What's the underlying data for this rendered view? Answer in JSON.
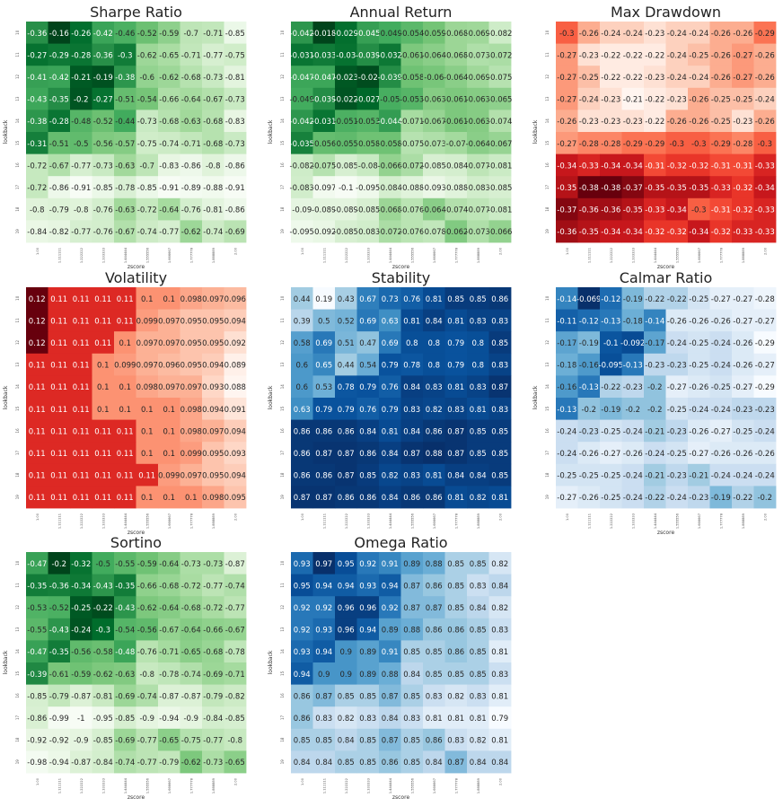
{
  "chart_data": [
    {
      "type": "heatmap",
      "title": "Sharpe Ratio",
      "cmap": "greens",
      "xlabel": "zscore",
      "ylabel": "lookback",
      "x": [
        "1.00",
        "1.111111",
        "1.222222",
        "1.333333",
        "1.444444",
        "1.555556",
        "1.666667",
        "1.777778",
        "1.888889",
        "2.00"
      ],
      "y": [
        "10",
        "11",
        "12",
        "13",
        "14",
        "15",
        "16",
        "17",
        "18",
        "19"
      ],
      "values": [
        [
          -0.36,
          -0.16,
          -0.26,
          -0.42,
          -0.46,
          -0.52,
          -0.59,
          -0.7,
          -0.71,
          -0.85
        ],
        [
          -0.27,
          -0.29,
          -0.28,
          -0.36,
          -0.3,
          -0.62,
          -0.65,
          -0.71,
          -0.77,
          -0.75
        ],
        [
          -0.41,
          -0.42,
          -0.21,
          -0.19,
          -0.38,
          -0.6,
          -0.62,
          -0.68,
          -0.73,
          -0.81
        ],
        [
          -0.43,
          -0.35,
          -0.2,
          -0.27,
          -0.51,
          -0.54,
          -0.66,
          -0.64,
          -0.67,
          -0.73
        ],
        [
          -0.38,
          -0.28,
          -0.48,
          -0.52,
          -0.44,
          -0.73,
          -0.68,
          -0.63,
          -0.68,
          -0.83
        ],
        [
          -0.31,
          -0.51,
          -0.5,
          -0.56,
          -0.57,
          -0.75,
          -0.74,
          -0.71,
          -0.68,
          -0.73
        ],
        [
          -0.72,
          -0.67,
          -0.77,
          -0.73,
          -0.63,
          -0.7,
          -0.83,
          -0.86,
          -0.8,
          -0.86
        ],
        [
          -0.72,
          -0.86,
          -0.91,
          -0.85,
          -0.78,
          -0.85,
          -0.91,
          -0.89,
          -0.88,
          -0.91
        ],
        [
          -0.8,
          -0.79,
          -0.8,
          -0.76,
          -0.63,
          -0.72,
          -0.64,
          -0.76,
          -0.81,
          -0.86
        ],
        [
          -0.84,
          -0.82,
          -0.77,
          -0.76,
          -0.67,
          -0.74,
          -0.77,
          -0.62,
          -0.74,
          -0.69
        ]
      ]
    },
    {
      "type": "heatmap",
      "title": "Annual Return",
      "cmap": "greens",
      "xlabel": "zscore",
      "ylabel": "lookback",
      "x": [
        "1.00",
        "1.111111",
        "1.222222",
        "1.333333",
        "1.444444",
        "1.555556",
        "1.666667",
        "1.777778",
        "1.888889",
        "2.00"
      ],
      "y": [
        "10",
        "11",
        "12",
        "13",
        "14",
        "15",
        "16",
        "17",
        "18",
        "19"
      ],
      "values": [
        [
          -0.042,
          -0.018,
          -0.029,
          -0.045,
          -0.049,
          -0.054,
          -0.059,
          -0.068,
          -0.069,
          -0.082
        ],
        [
          -0.031,
          -0.033,
          -0.03,
          -0.039,
          -0.032,
          -0.061,
          -0.064,
          -0.068,
          -0.073,
          -0.072
        ],
        [
          -0.047,
          -0.047,
          -0.023,
          -0.02,
          -0.039,
          -0.058,
          -0.06,
          -0.064,
          -0.069,
          -0.075
        ],
        [
          -0.049,
          -0.039,
          -0.022,
          -0.027,
          -0.05,
          -0.053,
          -0.063,
          -0.061,
          -0.063,
          -0.065
        ],
        [
          -0.042,
          -0.031,
          -0.051,
          -0.053,
          -0.044,
          -0.071,
          -0.067,
          -0.061,
          -0.063,
          -0.074
        ],
        [
          -0.035,
          -0.056,
          -0.055,
          -0.058,
          -0.058,
          -0.075,
          -0.073,
          -0.07,
          -0.064,
          -0.067
        ],
        [
          -0.082,
          -0.075,
          -0.085,
          -0.08,
          -0.066,
          -0.072,
          -0.085,
          -0.084,
          -0.077,
          -0.081
        ],
        [
          -0.083,
          -0.097,
          -0.1,
          -0.095,
          -0.084,
          -0.088,
          -0.093,
          -0.088,
          -0.083,
          -0.085
        ],
        [
          -0.09,
          -0.089,
          -0.089,
          -0.085,
          -0.068,
          -0.076,
          -0.064,
          -0.074,
          -0.077,
          -0.081
        ],
        [
          -0.095,
          -0.092,
          -0.085,
          -0.083,
          -0.072,
          -0.076,
          -0.078,
          -0.062,
          -0.073,
          -0.066
        ]
      ]
    },
    {
      "type": "heatmap",
      "title": "Max Drawdown",
      "cmap": "reds_r",
      "xlabel": "zscore",
      "ylabel": "lookback",
      "x": [
        "1.00",
        "1.111111",
        "1.222222",
        "1.333333",
        "1.444444",
        "1.555556",
        "1.666667",
        "1.777778",
        "1.888889",
        "2.00"
      ],
      "y": [
        "10",
        "11",
        "12",
        "13",
        "14",
        "15",
        "16",
        "17",
        "18",
        "19"
      ],
      "values": [
        [
          -0.3,
          -0.26,
          -0.24,
          -0.24,
          -0.23,
          -0.24,
          -0.24,
          -0.26,
          -0.26,
          -0.29
        ],
        [
          -0.27,
          -0.23,
          -0.22,
          -0.22,
          -0.22,
          -0.24,
          -0.25,
          -0.26,
          -0.27,
          -0.26
        ],
        [
          -0.27,
          -0.25,
          -0.22,
          -0.22,
          -0.23,
          -0.24,
          -0.24,
          -0.26,
          -0.27,
          -0.26
        ],
        [
          -0.27,
          -0.24,
          -0.23,
          -0.21,
          -0.22,
          -0.23,
          -0.26,
          -0.25,
          -0.25,
          -0.24
        ],
        [
          -0.26,
          -0.23,
          -0.23,
          -0.23,
          -0.22,
          -0.26,
          -0.26,
          -0.25,
          -0.23,
          -0.26
        ],
        [
          -0.27,
          -0.28,
          -0.28,
          -0.29,
          -0.29,
          -0.3,
          -0.3,
          -0.29,
          -0.28,
          -0.3
        ],
        [
          -0.34,
          -0.33,
          -0.34,
          -0.34,
          -0.31,
          -0.32,
          -0.32,
          -0.31,
          -0.31,
          -0.33
        ],
        [
          -0.35,
          -0.38,
          -0.38,
          -0.37,
          -0.35,
          -0.35,
          -0.35,
          -0.33,
          -0.32,
          -0.34
        ],
        [
          -0.37,
          -0.36,
          -0.36,
          -0.35,
          -0.33,
          -0.34,
          -0.3,
          -0.31,
          -0.32,
          -0.33
        ],
        [
          -0.36,
          -0.35,
          -0.34,
          -0.34,
          -0.32,
          -0.32,
          -0.34,
          -0.32,
          -0.33,
          -0.33
        ]
      ]
    },
    {
      "type": "heatmap",
      "title": "Volatility",
      "cmap": "reds",
      "xlabel": "zscore",
      "ylabel": "lookback",
      "x": [
        "1.00",
        "1.111111",
        "1.222222",
        "1.333333",
        "1.444444",
        "1.555556",
        "1.666667",
        "1.777778",
        "1.888889",
        "2.00"
      ],
      "y": [
        "10",
        "11",
        "12",
        "13",
        "14",
        "15",
        "16",
        "17",
        "18",
        "19"
      ],
      "values": [
        [
          0.12,
          0.11,
          0.11,
          0.11,
          0.11,
          0.1,
          0.1,
          0.098,
          0.097,
          0.096
        ],
        [
          0.12,
          0.11,
          0.11,
          0.11,
          0.11,
          0.099,
          0.097,
          0.095,
          0.095,
          0.094
        ],
        [
          0.12,
          0.11,
          0.11,
          0.11,
          0.1,
          0.097,
          0.097,
          0.095,
          0.095,
          0.092
        ],
        [
          0.11,
          0.11,
          0.11,
          0.1,
          0.099,
          0.097,
          0.096,
          0.095,
          0.094,
          0.089
        ],
        [
          0.11,
          0.11,
          0.11,
          0.1,
          0.1,
          0.098,
          0.097,
          0.097,
          0.093,
          0.088
        ],
        [
          0.11,
          0.11,
          0.11,
          0.1,
          0.1,
          0.1,
          0.1,
          0.098,
          0.094,
          0.091
        ],
        [
          0.11,
          0.11,
          0.11,
          0.11,
          0.11,
          0.1,
          0.1,
          0.098,
          0.097,
          0.094
        ],
        [
          0.11,
          0.11,
          0.11,
          0.11,
          0.11,
          0.1,
          0.1,
          0.099,
          0.095,
          0.093
        ],
        [
          0.11,
          0.11,
          0.11,
          0.11,
          0.11,
          0.11,
          0.099,
          0.097,
          0.095,
          0.094
        ],
        [
          0.11,
          0.11,
          0.11,
          0.11,
          0.11,
          0.1,
          0.1,
          0.1,
          0.098,
          0.095
        ]
      ]
    },
    {
      "type": "heatmap",
      "title": "Stability",
      "cmap": "blues",
      "xlabel": "",
      "ylabel": "lookback",
      "x": [
        "1.00",
        "1.111111",
        "1.222222",
        "1.333333",
        "1.444444",
        "1.555556",
        "1.666667",
        "1.777778",
        "1.888889",
        "2.00"
      ],
      "y": [
        "10",
        "11",
        "12",
        "13",
        "14",
        "15",
        "16",
        "17",
        "18",
        "19"
      ],
      "values": [
        [
          0.44,
          0.19,
          0.43,
          0.67,
          0.73,
          0.76,
          0.81,
          0.85,
          0.85,
          0.86
        ],
        [
          0.39,
          0.5,
          0.52,
          0.69,
          0.63,
          0.81,
          0.84,
          0.81,
          0.83,
          0.83
        ],
        [
          0.58,
          0.69,
          0.51,
          0.47,
          0.69,
          0.8,
          0.8,
          0.79,
          0.8,
          0.85
        ],
        [
          0.6,
          0.65,
          0.44,
          0.54,
          0.79,
          0.78,
          0.8,
          0.79,
          0.8,
          0.83
        ],
        [
          0.6,
          0.53,
          0.78,
          0.79,
          0.76,
          0.84,
          0.83,
          0.81,
          0.83,
          0.87
        ],
        [
          0.63,
          0.79,
          0.79,
          0.76,
          0.79,
          0.83,
          0.82,
          0.83,
          0.81,
          0.83
        ],
        [
          0.86,
          0.86,
          0.86,
          0.84,
          0.81,
          0.84,
          0.86,
          0.87,
          0.85,
          0.85
        ],
        [
          0.86,
          0.87,
          0.87,
          0.86,
          0.84,
          0.87,
          0.88,
          0.87,
          0.85,
          0.85
        ],
        [
          0.86,
          0.86,
          0.87,
          0.85,
          0.82,
          0.83,
          0.81,
          0.84,
          0.84,
          0.85
        ],
        [
          0.87,
          0.87,
          0.86,
          0.86,
          0.84,
          0.86,
          0.86,
          0.81,
          0.82,
          0.81
        ]
      ]
    },
    {
      "type": "heatmap",
      "title": "Calmar Ratio",
      "cmap": "blues",
      "xlabel": "zscore",
      "ylabel": "lookback",
      "x": [
        "1.00",
        "1.111111",
        "1.222222",
        "1.333333",
        "1.444444",
        "1.555556",
        "1.666667",
        "1.777778",
        "1.888889",
        "2.00"
      ],
      "y": [
        "10",
        "11",
        "12",
        "13",
        "14",
        "15",
        "16",
        "17",
        "18",
        "19"
      ],
      "values": [
        [
          -0.14,
          -0.069,
          -0.12,
          -0.19,
          -0.22,
          -0.22,
          -0.25,
          -0.27,
          -0.27,
          -0.28
        ],
        [
          -0.11,
          -0.12,
          -0.13,
          -0.18,
          -0.14,
          -0.26,
          -0.26,
          -0.26,
          -0.27,
          -0.27
        ],
        [
          -0.17,
          -0.19,
          -0.1,
          -0.092,
          -0.17,
          -0.24,
          -0.25,
          -0.24,
          -0.26,
          -0.29
        ],
        [
          -0.18,
          -0.16,
          -0.095,
          -0.13,
          -0.23,
          -0.23,
          -0.25,
          -0.24,
          -0.26,
          -0.27
        ],
        [
          -0.16,
          -0.13,
          -0.22,
          -0.23,
          -0.2,
          -0.27,
          -0.26,
          -0.25,
          -0.27,
          -0.29
        ],
        [
          -0.13,
          -0.2,
          -0.19,
          -0.2,
          -0.2,
          -0.25,
          -0.24,
          -0.24,
          -0.23,
          -0.23
        ],
        [
          -0.24,
          -0.23,
          -0.25,
          -0.24,
          -0.21,
          -0.23,
          -0.26,
          -0.27,
          -0.25,
          -0.24
        ],
        [
          -0.24,
          -0.26,
          -0.27,
          -0.26,
          -0.24,
          -0.25,
          -0.27,
          -0.26,
          -0.26,
          -0.26
        ],
        [
          -0.25,
          -0.25,
          -0.25,
          -0.24,
          -0.21,
          -0.23,
          -0.21,
          -0.24,
          -0.24,
          -0.24
        ],
        [
          -0.27,
          -0.26,
          -0.25,
          -0.24,
          -0.22,
          -0.24,
          -0.23,
          -0.19,
          -0.22,
          -0.2
        ]
      ]
    },
    {
      "type": "heatmap",
      "title": "Sortino",
      "cmap": "greens",
      "xlabel": "zscore",
      "ylabel": "lookback",
      "x": [
        "1.00",
        "1.111111",
        "1.222222",
        "1.333333",
        "1.444444",
        "1.555556",
        "1.666667",
        "1.777778",
        "1.888889",
        "2.00"
      ],
      "y": [
        "10",
        "11",
        "12",
        "13",
        "14",
        "15",
        "16",
        "17",
        "18",
        "19"
      ],
      "values": [
        [
          -0.47,
          -0.2,
          -0.32,
          -0.5,
          -0.55,
          -0.59,
          -0.64,
          -0.73,
          -0.73,
          -0.87
        ],
        [
          -0.35,
          -0.36,
          -0.34,
          -0.43,
          -0.35,
          -0.66,
          -0.68,
          -0.72,
          -0.77,
          -0.74
        ],
        [
          -0.53,
          -0.52,
          -0.25,
          -0.22,
          -0.43,
          -0.62,
          -0.64,
          -0.68,
          -0.72,
          -0.77
        ],
        [
          -0.55,
          -0.43,
          -0.24,
          -0.3,
          -0.54,
          -0.56,
          -0.67,
          -0.64,
          -0.66,
          -0.67
        ],
        [
          -0.47,
          -0.35,
          -0.56,
          -0.58,
          -0.48,
          -0.76,
          -0.71,
          -0.65,
          -0.68,
          -0.78
        ],
        [
          -0.39,
          -0.61,
          -0.59,
          -0.62,
          -0.63,
          -0.8,
          -0.78,
          -0.74,
          -0.69,
          -0.71
        ],
        [
          -0.85,
          -0.79,
          -0.87,
          -0.81,
          -0.69,
          -0.74,
          -0.87,
          -0.87,
          -0.79,
          -0.82
        ],
        [
          -0.86,
          -0.99,
          -1,
          -0.95,
          -0.85,
          -0.9,
          -0.94,
          -0.9,
          -0.84,
          -0.85
        ],
        [
          -0.92,
          -0.92,
          -0.9,
          -0.85,
          -0.69,
          -0.77,
          -0.65,
          -0.75,
          -0.77,
          -0.8
        ],
        [
          -0.98,
          -0.94,
          -0.87,
          -0.84,
          -0.74,
          -0.77,
          -0.79,
          -0.62,
          -0.73,
          -0.65
        ]
      ]
    },
    {
      "type": "heatmap",
      "title": "Omega Ratio",
      "cmap": "blues",
      "xlabel": "zscore",
      "ylabel": "lookback",
      "x": [
        "1.00",
        "1.111111",
        "1.222222",
        "1.333333",
        "1.444444",
        "1.555556",
        "1.666667",
        "1.777778",
        "1.888889",
        "2.00"
      ],
      "y": [
        "10",
        "11",
        "12",
        "13",
        "14",
        "15",
        "16",
        "17",
        "18",
        "19"
      ],
      "values": [
        [
          0.93,
          0.97,
          0.95,
          0.92,
          0.91,
          0.89,
          0.88,
          0.85,
          0.85,
          0.82
        ],
        [
          0.95,
          0.94,
          0.94,
          0.93,
          0.94,
          0.87,
          0.86,
          0.85,
          0.83,
          0.84
        ],
        [
          0.92,
          0.92,
          0.96,
          0.96,
          0.92,
          0.87,
          0.87,
          0.85,
          0.84,
          0.82
        ],
        [
          0.92,
          0.93,
          0.96,
          0.94,
          0.89,
          0.88,
          0.86,
          0.86,
          0.85,
          0.83
        ],
        [
          0.93,
          0.94,
          0.9,
          0.89,
          0.91,
          0.85,
          0.85,
          0.86,
          0.85,
          0.81
        ],
        [
          0.94,
          0.9,
          0.9,
          0.89,
          0.88,
          0.84,
          0.85,
          0.85,
          0.85,
          0.83
        ],
        [
          0.86,
          0.87,
          0.85,
          0.85,
          0.87,
          0.85,
          0.83,
          0.82,
          0.83,
          0.81
        ],
        [
          0.86,
          0.83,
          0.82,
          0.83,
          0.84,
          0.83,
          0.81,
          0.81,
          0.81,
          0.79
        ],
        [
          0.85,
          0.85,
          0.84,
          0.85,
          0.87,
          0.85,
          0.86,
          0.83,
          0.82,
          0.81
        ],
        [
          0.84,
          0.84,
          0.85,
          0.85,
          0.86,
          0.85,
          0.84,
          0.87,
          0.84,
          0.84
        ]
      ]
    }
  ]
}
